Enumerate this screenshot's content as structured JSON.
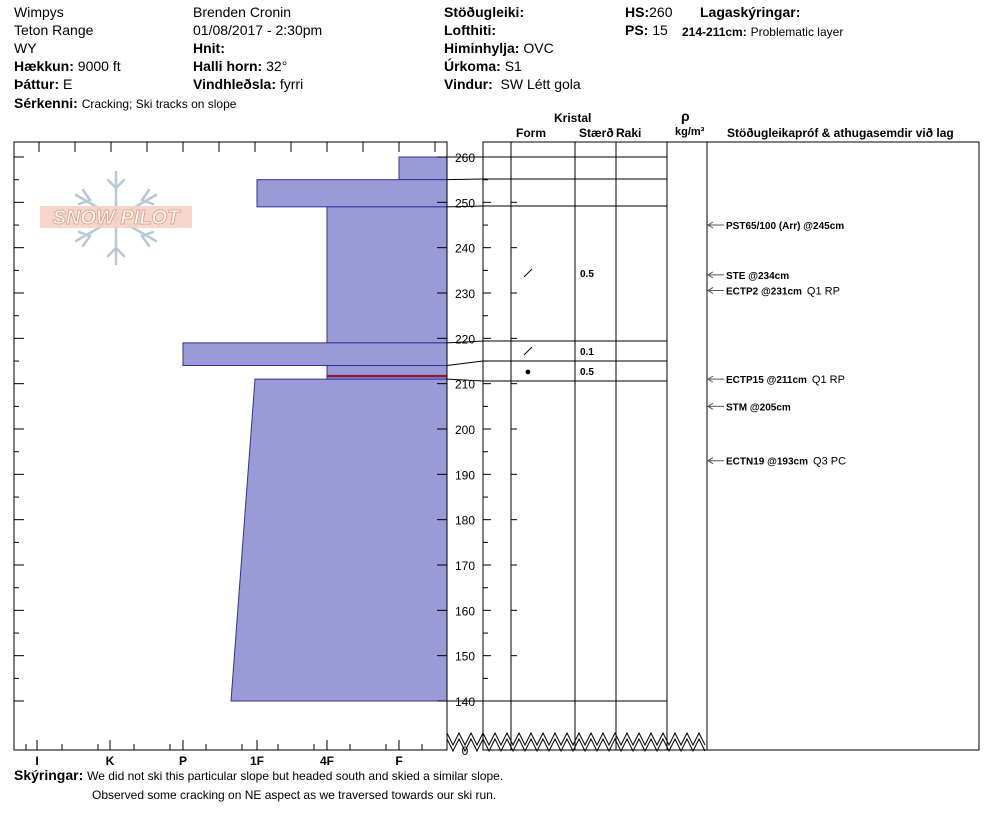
{
  "header": {
    "observation": "Wimpys",
    "range": "Teton Range",
    "state": "WY",
    "elevation_label": "Hækkun:",
    "elevation_value": "9000 ft",
    "aspect_label": "Þáttur:",
    "aspect_value": "E",
    "observer": "Brenden Cronin",
    "datetime": "01/08/2017 - 2:30pm",
    "coords_label": "Hnit:",
    "slope_label": "Halli horn:",
    "slope_value": "32°",
    "wind_loading_label": "Vindhleðsla:",
    "wind_loading_value": "fyrri",
    "stability_label": "Stöðugleiki:",
    "air_temp_label": "Lofthiti:",
    "sky_label": "Himinhylja:",
    "sky_value": "OVC",
    "precip_label": "Úrkoma:",
    "precip_value": "S1",
    "wind_label": "Vindur:",
    "wind_value": "SW Létt gola",
    "hs_label": "HS:",
    "hs_value": "260",
    "ps_label": "PS:",
    "ps_value": "15",
    "legend_label": "Lagaskýringar:",
    "problem_range": "214-211cm:",
    "problem_text": "Problematic layer",
    "features_label": "Sérkenni:",
    "features_value": "Cracking;  Ski tracks on slope"
  },
  "logo_text": "SNOW PILOT",
  "columns": {
    "crystal": "Kristal",
    "form": "Form",
    "size": "Stærð",
    "moisture": "Raki",
    "rho": "ρ",
    "density_unit": "kg/m³",
    "tests": "Stöðugleikapróf & athugasemdir við lag"
  },
  "notes": {
    "label": "Skýringar:",
    "line1": "We did not ski this particular slope but headed south and skied a similar slope.",
    "line2": "Observed some cracking on NE aspect as we traversed towards our ski run."
  },
  "colors": {
    "layer_fill": "#9a9ad6",
    "layer_stroke": "#3030a0",
    "problem_line": "#8b1a3a"
  },
  "chart_data": {
    "type": "snow-profile",
    "hardness_scale": [
      "I",
      "K",
      "P",
      "1F",
      "4F",
      "F"
    ],
    "height_ticks": [
      "260",
      "250",
      "240",
      "230",
      "220",
      "210",
      "200",
      "190",
      "180",
      "170",
      "160",
      "150",
      "140",
      "0"
    ],
    "height_range_cm": [
      140,
      260
    ],
    "hs_cm": 260,
    "layers": [
      {
        "top": 260,
        "bottom": 255,
        "hardness": "F"
      },
      {
        "top": 255,
        "bottom": 249,
        "hardness": "1F"
      },
      {
        "top": 249,
        "bottom": 219,
        "hardness": "4F"
      },
      {
        "top": 219,
        "bottom": 214,
        "hardness": "P"
      },
      {
        "top": 214,
        "bottom": 211,
        "hardness": "4F"
      },
      {
        "top": 211,
        "bottom": 140,
        "hardness_top": "1F+",
        "hardness_bottom": "1F-"
      }
    ],
    "grain_entries": [
      {
        "height": 234,
        "form": "/",
        "size": "0.5"
      },
      {
        "height": 218,
        "form": "/",
        "size": "0.1"
      },
      {
        "height": 213,
        "form": "●",
        "size": "0.5"
      }
    ],
    "problem_layer": {
      "top": 214,
      "bottom": 211
    },
    "tests": [
      {
        "height": 245,
        "code": "PST65/100 (Arr) @245cm",
        "extra": ""
      },
      {
        "height": 234,
        "code": "STE @234cm",
        "extra": ""
      },
      {
        "height": 231,
        "code": "ECTP2 @231cm",
        "extra": "Q1 RP"
      },
      {
        "height": 211,
        "code": "ECTP15 @211cm",
        "extra": "Q1 RP"
      },
      {
        "height": 205,
        "code": "STM @205cm",
        "extra": ""
      },
      {
        "height": 193,
        "code": "ECTN19 @193cm",
        "extra": "Q3 PC"
      }
    ]
  }
}
